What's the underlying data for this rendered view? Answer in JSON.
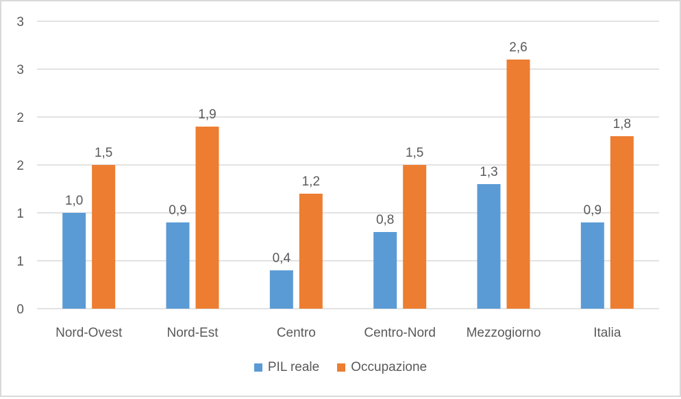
{
  "chart_data": {
    "type": "bar",
    "title": "",
    "xlabel": "",
    "ylabel": "",
    "categories": [
      "Nord-Ovest",
      "Nord-Est",
      "Centro",
      "Centro-Nord",
      "Mezzogiorno",
      "Italia"
    ],
    "series": [
      {
        "name": "PIL reale",
        "color": "#5b9bd5",
        "values": [
          1.0,
          0.9,
          0.4,
          0.8,
          1.3,
          0.9
        ],
        "labels": [
          "1,0",
          "0,9",
          "0,4",
          "0,8",
          "1,3",
          "0,9"
        ]
      },
      {
        "name": "Occupazione",
        "color": "#ed7d31",
        "values": [
          1.5,
          1.9,
          1.2,
          1.5,
          2.6,
          1.8
        ],
        "labels": [
          "1,5",
          "1,9",
          "1,2",
          "1,5",
          "2,6",
          "1,8"
        ]
      }
    ],
    "ylim": [
      0,
      3
    ],
    "ytick_values": [
      0,
      0.5,
      1,
      1.5,
      2,
      2.5,
      3
    ],
    "ytick_labels": [
      "0",
      "1",
      "1",
      "2",
      "2",
      "3",
      "3"
    ],
    "grid": true,
    "legend_position": "bottom"
  }
}
